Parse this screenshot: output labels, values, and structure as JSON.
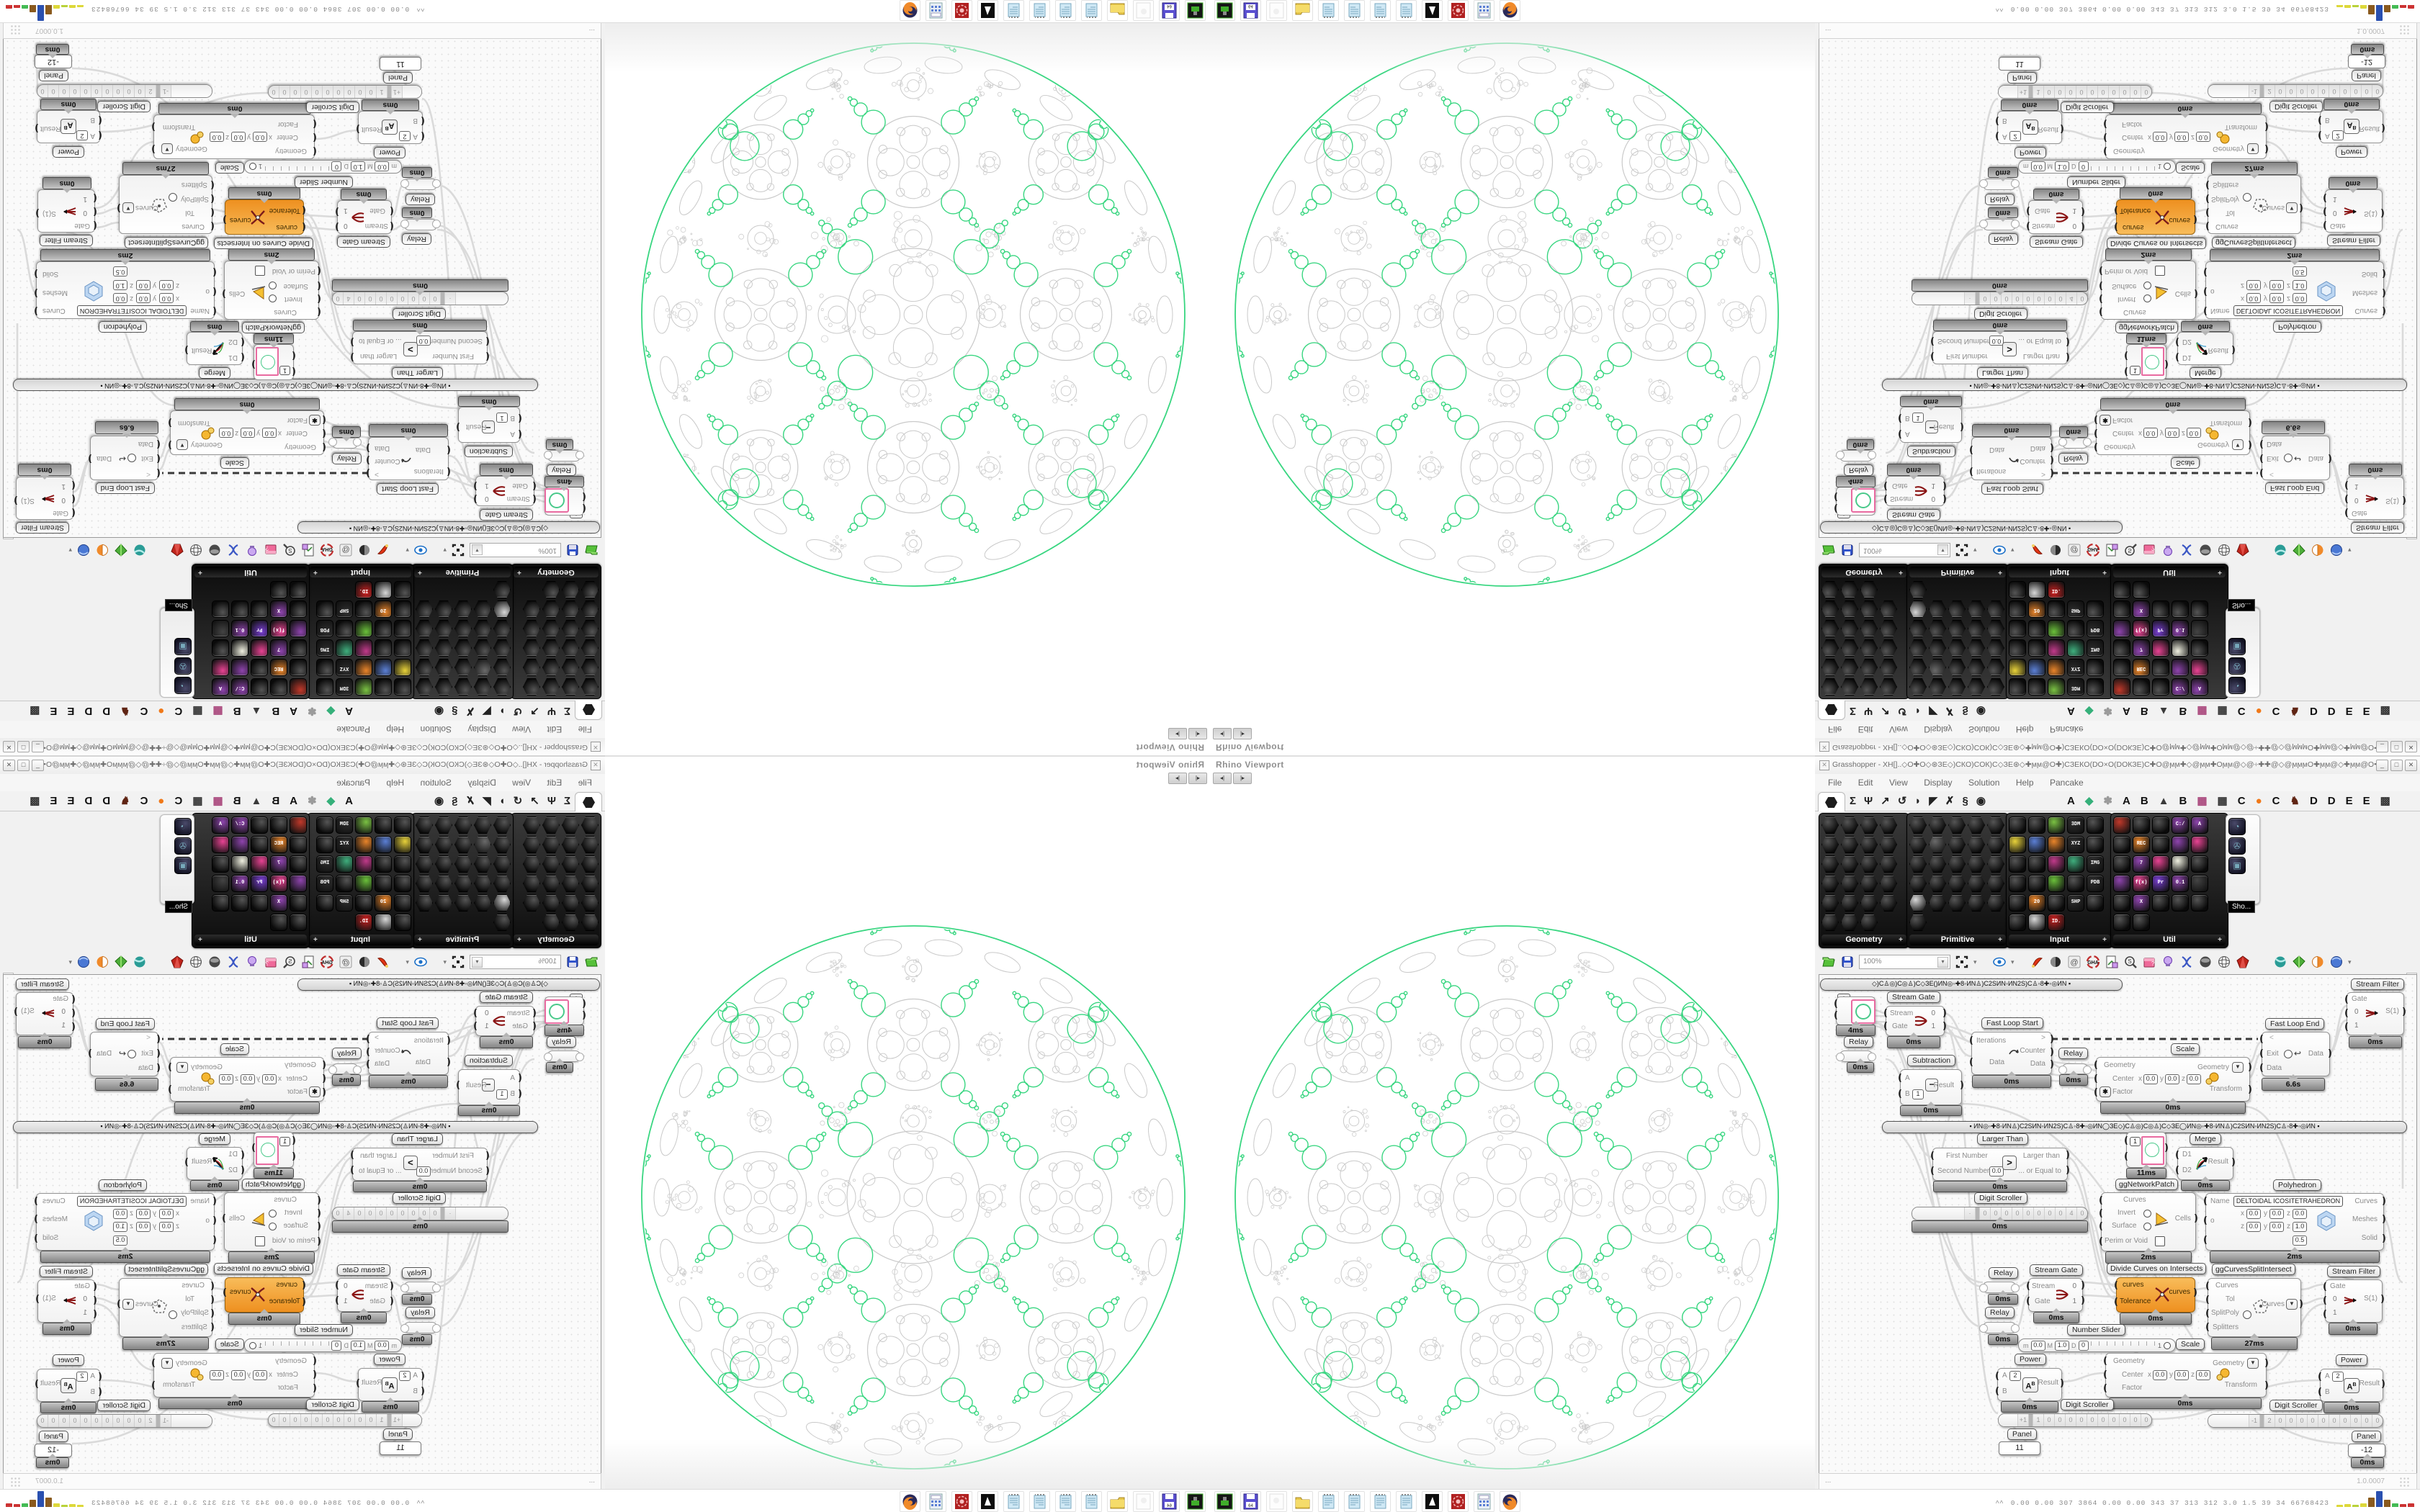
{
  "window": {
    "title": "Grasshopper - XH[]..◇O✚O◇⊛ЗЕ◇)CКO)COК)C◇ЗЕ⊛◇✚ϻϻ@O✚)CЗЕКO(DO×O(DOКЗЕ)C✚O@ϻϻ✚◇@ϻϻ✚Oϻϻ@◇@÷✚✚@◇@ϻϻϻO✚ϻϻ@◇✚ϻϻ@O✚)CЗЕКO(DO×O(D_",
    "icon_glyph": "✕",
    "buttons": [
      "_",
      "□",
      "✕"
    ],
    "menu": [
      "File",
      "Edit",
      "View",
      "Display",
      "Solution",
      "Help",
      "Pancake"
    ],
    "tabs_left": [
      "Σ",
      "Ψ",
      "↗",
      "↺",
      "◗",
      "◤",
      "✗",
      "§",
      "◉"
    ],
    "tabs_right": [
      {
        "t": "A",
        "c": "#111"
      },
      {
        "t": "◆",
        "c": "#35b07a"
      },
      {
        "t": "✽",
        "c": "#9a9a9a"
      },
      {
        "t": "A",
        "c": "#111"
      },
      {
        "t": "B",
        "c": "#111"
      },
      {
        "t": "▲",
        "c": "#3a3a3a"
      },
      {
        "t": "B",
        "c": "#111"
      },
      {
        "t": "▦",
        "c": "#a8447a"
      },
      {
        "t": "▦",
        "c": "#333"
      },
      {
        "t": "C",
        "c": "#111"
      },
      {
        "t": "●",
        "c": "#f07818"
      },
      {
        "t": "C",
        "c": "#111"
      },
      {
        "t": "♞",
        "c": "#5f2413"
      },
      {
        "t": "D",
        "c": "#111"
      },
      {
        "t": "D",
        "c": "#111"
      },
      {
        "t": "E",
        "c": "#111"
      },
      {
        "t": "E",
        "c": "#111"
      },
      {
        "t": "▩",
        "c": "#333"
      }
    ]
  },
  "palettes": [
    {
      "label": "Geometry",
      "cols": 4,
      "count": 23,
      "accents": {}
    },
    {
      "label": "Primitive",
      "cols": 5,
      "count": 26,
      "accents": {
        "6": "#6a6a6a",
        "20": "#d8d8d8"
      }
    },
    {
      "label": "Input",
      "cols": 5,
      "count": 28,
      "accents": {
        "2": "#7ac143",
        "3": "#2f2f2f",
        "5": "#e8d23a",
        "6": "#5b7fd4",
        "7": "#e8842a",
        "8": "#2f2f2f",
        "12": "#c03a8a",
        "13": "#3fae7d",
        "14": "#2f2f2f",
        "17": "#6abf3a",
        "19": "#2f2f2f",
        "21": "#e8842a",
        "23": "#2f2f2f",
        "26": "#d8d8d8",
        "27": "#cc2222"
      },
      "labels": {
        "3": "3DM",
        "8": "XYZ",
        "14": "IMG",
        "19": "PDB",
        "21": "20",
        "23": "SHP",
        "27": "ID."
      }
    },
    {
      "label": "Util",
      "cols": 5,
      "count": 27,
      "accents": {
        "0": "#c0392b",
        "3": "#8e44ad",
        "4": "#8e44ad",
        "6": "#e8842a",
        "8": "#8e44ad",
        "9": "#e84393",
        "11": "#8e44ad",
        "12": "#e84393",
        "13": "#f0f0e0",
        "15": "#8e44ad",
        "16": "#e84393",
        "17": "#7a3fd4",
        "18": "#8e44ad",
        "19": "#444",
        "21": "#8e44ad"
      },
      "labels": {
        "3": "C:/",
        "4": "A",
        "6": "REC",
        "11": "7",
        "16": "f(x)",
        "17": "Pr",
        "18": "0.1",
        "21": "X"
      }
    }
  ],
  "palette_overflow": {
    "tooltip": "Sho...",
    "icons": [
      "◔",
      "✇",
      "▣"
    ]
  },
  "toolbar": {
    "zoom_value": "100%"
  },
  "viewport": {
    "label": "Rhino Viewport"
  },
  "groups": {
    "barA": "◇)C♙◎)C◎♙)C◇ЗЕ()ИN◎◦✚8◦ИN♙)C2SИN◦ИN2S)C♙◦8✚◦◎ИN          ▪",
    "barB": "▪     ИN◎◦✚8◦ИN♙)C2SИN◦ИN2S)C♙◦8✚◦◎ИN◯ЗЕ◇)C♙◎)C◎♙)C◇ЗЕ◯ИN◎◦✚8◦ИN♙)C2SИN◦ИN2S)C♙◦8✚◦◎ИN     ▪"
  },
  "labels": {
    "relay": "Relay",
    "stream_gate": "Stream Gate",
    "stream_filter": "Stream Filter",
    "fast_loop_start": "Fast Loop Start",
    "fast_loop_end": "Fast Loop End",
    "subtraction": "Subtraction",
    "scale": "Scale",
    "larger_than": "Larger Than",
    "digit_scroller": "Digit Scroller",
    "number_slider": "Number Slider",
    "panel": "Panel",
    "power": "Power",
    "merge": "Merge",
    "divide_ci": "Divide Curves on Intersects",
    "ggcsi": "ggCurvesSplitIntersect",
    "ggnp": "ggNetworkPatch",
    "polyhedron": "Polyhedron"
  },
  "times": {
    "t0": "0ms",
    "t2": "2ms",
    "t4": "4ms",
    "t11": "11ms",
    "t27": "27ms",
    "t66": "6.6s"
  },
  "ports": {
    "stream": "Stream",
    "gate": "Gate",
    "zero": "0",
    "one": "1",
    "iterations": "Iterations",
    "counter": "Counter",
    "data": "Data",
    "gt_sym": ">",
    "lt_sym": "<",
    "exit": "Exit",
    "s1": "S(1)",
    "a": "A",
    "b": "B",
    "result": "Result",
    "geometry": "Geometry",
    "center": "Center",
    "x": "x",
    "y": "y",
    "z": "z",
    "v00": "0.0",
    "v10": "1.0",
    "v05": "0.5",
    "v1": "1",
    "v2": "2",
    "factor": "Factor",
    "transform": "Transform",
    "first_number": "First Number",
    "second_number": "Second Number",
    "larger_than": "Larger than",
    "or_equal": "... or Equal to",
    "curves": "Curves",
    "curves_lc": "curves",
    "tolerance": "Tolerance",
    "tol": "Tol",
    "splitpoly": "SplitPoly",
    "splitters": "Splitters",
    "d1": "D1",
    "d2": "D2",
    "invert": "Invert",
    "surface": "Surface",
    "cells": "Cells",
    "perim": "Perim or Void",
    "name": "Name",
    "name_value": "DELTOIDAL ICOSITETRAHEDRON",
    "o": "o",
    "meshes": "Meshes",
    "solid": "Solid",
    "m": "m",
    "M": "M",
    "D": "D",
    "minus": "−",
    "ab": "AB",
    "star": "✱",
    "down": "▼",
    "ret": "↩"
  },
  "sliders": {
    "long_digits": [
      "·",
      "0",
      "0",
      "0",
      "0",
      "0",
      "0",
      "0",
      "0",
      "4",
      "0"
    ],
    "ds1_digits": [
      "+1",
      "1",
      "0",
      "0",
      "0",
      "0",
      "0",
      "0",
      "0",
      "0",
      "0",
      "0"
    ],
    "ds2_digits": [
      "-1",
      "2",
      "0",
      "0",
      "0",
      "0",
      "0",
      "0",
      "0",
      "0",
      "0",
      "0"
    ],
    "num_end": "1"
  },
  "panels": {
    "p11": "11",
    "p12": "-12",
    "one": "1"
  },
  "statusbar": {
    "dots": "...",
    "version": "1.0.0007"
  },
  "profiler": {
    "text": "0.00 0.00 307 3864 0.00 0.00 343 37 313 312 3.0 1.5 39 34 66768423",
    "chevron": "^",
    "bars": [
      {
        "c": "#ddd83a",
        "h": 3
      },
      {
        "c": "#ddd83a",
        "h": 4
      },
      {
        "c": "#b8d23a",
        "h": 3
      },
      {
        "c": "#ddd83a",
        "h": 5
      },
      {
        "c": "#8a5a1e",
        "h": 13
      },
      {
        "c": "#2a50b0",
        "h": 22
      },
      {
        "c": "#8a5a1e",
        "h": 10
      },
      {
        "c": "#44bb55",
        "h": 5
      },
      {
        "c": "#cc3333",
        "h": 4
      },
      {
        "c": "#cc3333",
        "h": 5
      }
    ]
  },
  "taskbar_icons": [
    "console",
    "floppy64",
    "blank",
    "folder",
    "note",
    "note",
    "note",
    "note",
    "bw",
    "redball",
    "calc",
    "firefox"
  ],
  "colors": {
    "green": "#38d680",
    "gray": "#c9c9c9",
    "wire": "#dadada",
    "orange_accent": "#f09030"
  }
}
